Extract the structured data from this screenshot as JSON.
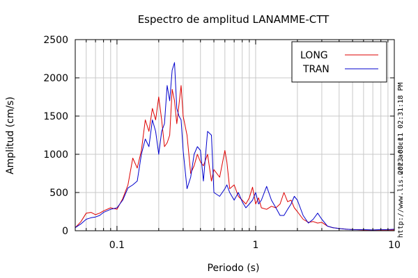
{
  "chart_data": {
    "type": "line",
    "title": "Espectro de amplitud LANAMME-CTT",
    "xlabel": "Periodo (s)",
    "ylabel": "Amplitud (cm/s)",
    "xscale": "log",
    "xlim": [
      0.05,
      10
    ],
    "ylim": [
      0,
      2500
    ],
    "x_ticks": [
      0.1,
      1,
      10
    ],
    "x_tick_labels": [
      "0.1",
      "1",
      "10"
    ],
    "y_ticks": [
      0,
      500,
      1000,
      1500,
      2000,
      2500
    ],
    "y_tick_labels": [
      "0",
      "500",
      "1000",
      "1500",
      "2000",
      "2500"
    ],
    "grid": true,
    "legend_position": "top-right",
    "timestamp": "2023-08-11 02:31:18 PM",
    "source_url": "http://www.lis.ucr.ac.cr",
    "series": [
      {
        "name": "LONG",
        "color": "#dd0000",
        "x": [
          0.05,
          0.055,
          0.06,
          0.065,
          0.07,
          0.075,
          0.08,
          0.09,
          0.1,
          0.11,
          0.12,
          0.13,
          0.14,
          0.15,
          0.16,
          0.17,
          0.18,
          0.19,
          0.2,
          0.21,
          0.22,
          0.23,
          0.24,
          0.25,
          0.26,
          0.27,
          0.28,
          0.29,
          0.3,
          0.32,
          0.34,
          0.36,
          0.38,
          0.4,
          0.42,
          0.45,
          0.48,
          0.5,
          0.55,
          0.6,
          0.62,
          0.65,
          0.7,
          0.75,
          0.8,
          0.85,
          0.9,
          0.95,
          1.0,
          1.05,
          1.1,
          1.2,
          1.3,
          1.4,
          1.5,
          1.6,
          1.7,
          1.8,
          1.9,
          2.0,
          2.2,
          2.4,
          2.6,
          2.8,
          3.0,
          3.3,
          3.6,
          4.0,
          4.5,
          5.0,
          6.0,
          7.0,
          8.0,
          9.0,
          10.0
        ],
        "y": [
          40,
          120,
          230,
          240,
          210,
          230,
          260,
          300,
          280,
          420,
          600,
          950,
          820,
          1050,
          1450,
          1300,
          1600,
          1450,
          1750,
          1450,
          1100,
          1150,
          1250,
          1850,
          1700,
          1400,
          1650,
          1900,
          1500,
          1250,
          750,
          850,
          1000,
          900,
          850,
          1000,
          650,
          800,
          700,
          1050,
          900,
          550,
          600,
          450,
          400,
          350,
          430,
          570,
          350,
          430,
          300,
          280,
          320,
          300,
          350,
          500,
          380,
          400,
          300,
          250,
          150,
          110,
          120,
          100,
          110,
          60,
          40,
          30,
          20,
          15,
          10,
          10,
          10,
          10,
          10
        ]
      },
      {
        "name": "TRAN",
        "color": "#0000cc",
        "x": [
          0.05,
          0.055,
          0.06,
          0.065,
          0.07,
          0.075,
          0.08,
          0.09,
          0.1,
          0.11,
          0.12,
          0.13,
          0.14,
          0.15,
          0.16,
          0.17,
          0.18,
          0.19,
          0.2,
          0.21,
          0.22,
          0.23,
          0.24,
          0.25,
          0.26,
          0.27,
          0.28,
          0.29,
          0.3,
          0.32,
          0.34,
          0.36,
          0.38,
          0.4,
          0.42,
          0.45,
          0.48,
          0.5,
          0.55,
          0.6,
          0.62,
          0.65,
          0.7,
          0.75,
          0.8,
          0.85,
          0.9,
          0.95,
          1.0,
          1.05,
          1.1,
          1.2,
          1.3,
          1.4,
          1.5,
          1.6,
          1.7,
          1.8,
          1.9,
          2.0,
          2.2,
          2.4,
          2.6,
          2.8,
          3.0,
          3.3,
          3.6,
          4.0,
          4.5,
          5.0,
          6.0,
          7.0,
          8.0,
          9.0,
          10.0
        ],
        "y": [
          40,
          90,
          150,
          170,
          180,
          200,
          240,
          280,
          300,
          400,
          560,
          600,
          650,
          1000,
          1200,
          1100,
          1450,
          1300,
          1000,
          1300,
          1400,
          1900,
          1700,
          2100,
          2200,
          1600,
          1500,
          1450,
          1050,
          550,
          700,
          1000,
          1100,
          1050,
          650,
          1300,
          1250,
          500,
          450,
          550,
          600,
          500,
          400,
          500,
          380,
          300,
          350,
          400,
          500,
          350,
          400,
          580,
          400,
          300,
          200,
          200,
          280,
          350,
          450,
          400,
          200,
          100,
          150,
          230,
          150,
          60,
          40,
          30,
          20,
          15,
          15,
          10,
          15,
          15,
          20
        ]
      }
    ]
  }
}
